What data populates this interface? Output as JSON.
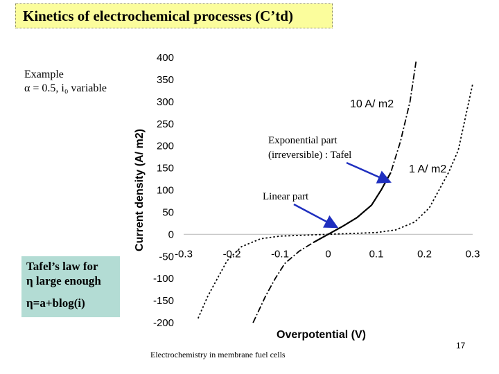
{
  "slide": {
    "title": "Kinetics of electrochemical processes (C’td)",
    "example_label": "Example",
    "example_params": "α = 0.5, i₀ variable",
    "tafel_line1": "Tafel’s law for",
    "tafel_line2": "η large enough",
    "tafel_eq": "η=a+blog(i)",
    "footer": "Electrochemistry in membrane fuel cells",
    "page_number": "17"
  },
  "chart_data": {
    "type": "line",
    "xlabel": "Overpotential (V)",
    "ylabel": "Current density (A/ m2)",
    "xlim": [
      -0.3,
      0.3
    ],
    "ylim": [
      -200,
      400
    ],
    "x_ticks": [
      "-0.3",
      "-0.2",
      "-0.1",
      "0",
      "0.1",
      "0.2",
      "0.3"
    ],
    "y_ticks": [
      "400",
      "350",
      "300",
      "250",
      "200",
      "150",
      "100",
      "50",
      "0",
      "-50",
      "-100",
      "-150",
      "-200"
    ],
    "grid": false,
    "zero_line": true,
    "series": [
      {
        "name": "10 A/ m2",
        "style": "dash-dot",
        "points": [
          [
            -0.156,
            -200
          ],
          [
            -0.13,
            -140
          ],
          [
            -0.11,
            -100
          ],
          [
            -0.09,
            -66
          ],
          [
            -0.06,
            -38
          ],
          [
            -0.03,
            -18
          ],
          [
            0,
            0
          ],
          [
            0.03,
            18
          ],
          [
            0.06,
            38
          ],
          [
            0.09,
            66
          ],
          [
            0.11,
            100
          ],
          [
            0.13,
            140
          ],
          [
            0.15,
            210
          ],
          [
            0.17,
            300
          ],
          [
            0.183,
            395
          ]
        ]
      },
      {
        "name": "1 A/ m2",
        "style": "dotted",
        "points": [
          [
            -0.27,
            -190
          ],
          [
            -0.25,
            -140
          ],
          [
            -0.23,
            -100
          ],
          [
            -0.21,
            -60
          ],
          [
            -0.18,
            -28
          ],
          [
            -0.14,
            -10
          ],
          [
            -0.1,
            -4
          ],
          [
            0,
            0
          ],
          [
            0.1,
            4
          ],
          [
            0.14,
            10
          ],
          [
            0.18,
            28
          ],
          [
            0.21,
            60
          ],
          [
            0.23,
            100
          ],
          [
            0.25,
            140
          ],
          [
            0.27,
            190
          ],
          [
            0.285,
            265
          ],
          [
            0.3,
            340
          ]
        ]
      }
    ],
    "annotations": [
      {
        "text_lines": [
          "Exponential part",
          "(irreversible) : Tafel"
        ],
        "arrow_to": [
          0.125,
          120
        ]
      },
      {
        "text_lines": [
          "Linear part"
        ],
        "arrow_to": [
          0.015,
          18
        ]
      }
    ],
    "colors": {
      "arrow": "#1f2fbf",
      "series": "#000000",
      "zero_line": "#c0c0c0"
    }
  },
  "colors": {
    "title_bg": "#fbfd9c",
    "tafel_bg": "#b3dcd4"
  }
}
